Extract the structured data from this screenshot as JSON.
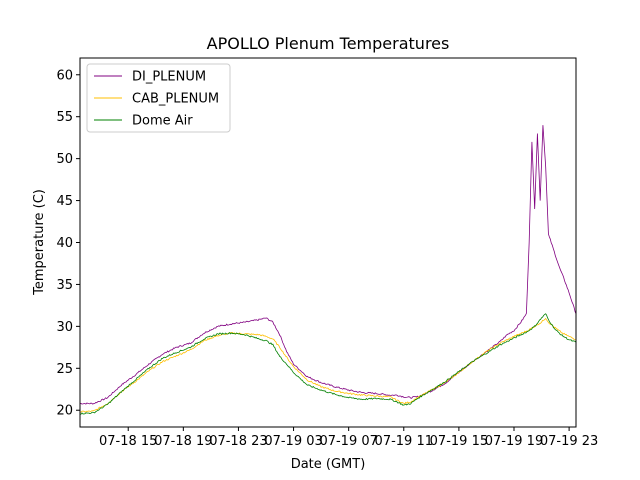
{
  "chart_data": {
    "type": "line",
    "title": "APOLLO Plenum Temperatures",
    "xlabel": "Date (GMT)",
    "ylabel": "Temperature (C)",
    "xlim": [
      11.5,
      47.5
    ],
    "ylim": [
      18,
      62
    ],
    "x_unit": "hours since 07-18 00:00 GMT",
    "yticks": [
      20,
      25,
      30,
      35,
      40,
      45,
      50,
      55,
      60
    ],
    "xticks": [
      {
        "x": 15,
        "label": "07-18 15"
      },
      {
        "x": 19,
        "label": "07-18 19"
      },
      {
        "x": 23,
        "label": "07-18 23"
      },
      {
        "x": 27,
        "label": "07-19 03"
      },
      {
        "x": 31,
        "label": "07-19 07"
      },
      {
        "x": 35,
        "label": "07-19 11"
      },
      {
        "x": 39,
        "label": "07-19 15"
      },
      {
        "x": 43,
        "label": "07-19 19"
      },
      {
        "x": 47,
        "label": "07-19 23"
      }
    ],
    "legend_position": "top-left",
    "series": [
      {
        "name": "DI_PLENUM",
        "color": "#800080",
        "points": [
          [
            11.5,
            20.8
          ],
          [
            12.5,
            20.8
          ],
          [
            13.5,
            21.5
          ],
          [
            14.5,
            23.0
          ],
          [
            15.5,
            24.2
          ],
          [
            16.5,
            25.5
          ],
          [
            17.5,
            26.7
          ],
          [
            18.5,
            27.5
          ],
          [
            19.5,
            28.0
          ],
          [
            20.5,
            29.2
          ],
          [
            21.5,
            30.0
          ],
          [
            22.5,
            30.3
          ],
          [
            23.5,
            30.5
          ],
          [
            24.5,
            30.8
          ],
          [
            25.0,
            31.0
          ],
          [
            25.5,
            30.5
          ],
          [
            26.0,
            29.0
          ],
          [
            26.5,
            27.0
          ],
          [
            27.0,
            25.5
          ],
          [
            28.0,
            24.0
          ],
          [
            29.0,
            23.3
          ],
          [
            30.0,
            22.8
          ],
          [
            31.0,
            22.4
          ],
          [
            32.0,
            22.1
          ],
          [
            33.0,
            22.0
          ],
          [
            34.0,
            21.8
          ],
          [
            34.5,
            21.8
          ],
          [
            35.0,
            21.6
          ],
          [
            35.5,
            21.5
          ],
          [
            36.0,
            21.6
          ],
          [
            37.0,
            22.3
          ],
          [
            38.0,
            23.2
          ],
          [
            39.0,
            24.5
          ],
          [
            40.0,
            25.8
          ],
          [
            41.0,
            27.0
          ],
          [
            42.0,
            28.2
          ],
          [
            42.5,
            29.0
          ],
          [
            43.0,
            29.5
          ],
          [
            43.5,
            30.5
          ],
          [
            43.9,
            31.5
          ],
          [
            44.1,
            40.0
          ],
          [
            44.3,
            52.0
          ],
          [
            44.5,
            44.0
          ],
          [
            44.7,
            53.0
          ],
          [
            44.9,
            45.0
          ],
          [
            45.1,
            54.0
          ],
          [
            45.3,
            49.0
          ],
          [
            45.5,
            41.0
          ],
          [
            45.7,
            40.0
          ],
          [
            46.0,
            38.5
          ],
          [
            46.3,
            37.0
          ],
          [
            46.6,
            35.8
          ],
          [
            47.0,
            34.0
          ],
          [
            47.5,
            31.5
          ]
        ]
      },
      {
        "name": "CAB_PLENUM",
        "color": "#ffbf00",
        "points": [
          [
            11.5,
            19.8
          ],
          [
            12.5,
            19.9
          ],
          [
            13.5,
            20.8
          ],
          [
            14.5,
            22.2
          ],
          [
            15.5,
            23.4
          ],
          [
            16.5,
            24.7
          ],
          [
            17.5,
            25.8
          ],
          [
            18.5,
            26.5
          ],
          [
            19.5,
            27.2
          ],
          [
            20.5,
            28.3
          ],
          [
            21.5,
            28.9
          ],
          [
            22.5,
            29.2
          ],
          [
            23.5,
            29.1
          ],
          [
            24.5,
            29.0
          ],
          [
            25.0,
            28.8
          ],
          [
            25.5,
            28.5
          ],
          [
            26.0,
            27.5
          ],
          [
            26.5,
            26.3
          ],
          [
            27.0,
            25.2
          ],
          [
            28.0,
            23.6
          ],
          [
            29.0,
            22.8
          ],
          [
            30.0,
            22.3
          ],
          [
            31.0,
            22.0
          ],
          [
            32.0,
            21.8
          ],
          [
            33.0,
            21.7
          ],
          [
            34.0,
            21.6
          ],
          [
            34.5,
            21.2
          ],
          [
            35.0,
            20.8
          ],
          [
            35.5,
            21.0
          ],
          [
            36.0,
            21.5
          ],
          [
            37.0,
            22.4
          ],
          [
            38.0,
            23.3
          ],
          [
            39.0,
            24.5
          ],
          [
            40.0,
            25.8
          ],
          [
            41.0,
            27.0
          ],
          [
            42.0,
            28.0
          ],
          [
            43.0,
            28.8
          ],
          [
            44.0,
            29.5
          ],
          [
            44.5,
            30.0
          ],
          [
            45.0,
            30.5
          ],
          [
            45.3,
            31.0
          ],
          [
            45.5,
            30.5
          ],
          [
            46.0,
            29.8
          ],
          [
            46.5,
            29.2
          ],
          [
            47.0,
            28.8
          ],
          [
            47.5,
            28.4
          ]
        ]
      },
      {
        "name": "Dome Air",
        "color": "#008000",
        "points": [
          [
            11.5,
            19.6
          ],
          [
            12.5,
            19.7
          ],
          [
            13.5,
            20.7
          ],
          [
            14.5,
            22.2
          ],
          [
            15.5,
            23.6
          ],
          [
            16.5,
            25.0
          ],
          [
            17.5,
            26.2
          ],
          [
            18.5,
            26.9
          ],
          [
            19.5,
            27.5
          ],
          [
            20.5,
            28.5
          ],
          [
            21.5,
            29.1
          ],
          [
            22.5,
            29.2
          ],
          [
            23.5,
            29.0
          ],
          [
            24.5,
            28.5
          ],
          [
            25.0,
            28.3
          ],
          [
            25.5,
            27.8
          ],
          [
            26.0,
            26.4
          ],
          [
            26.5,
            25.5
          ],
          [
            27.0,
            24.5
          ],
          [
            28.0,
            23.0
          ],
          [
            29.0,
            22.4
          ],
          [
            30.0,
            21.9
          ],
          [
            31.0,
            21.5
          ],
          [
            32.0,
            21.3
          ],
          [
            33.0,
            21.4
          ],
          [
            34.0,
            21.3
          ],
          [
            34.5,
            21.0
          ],
          [
            35.0,
            20.6
          ],
          [
            35.5,
            20.8
          ],
          [
            36.0,
            21.4
          ],
          [
            37.0,
            22.4
          ],
          [
            38.0,
            23.4
          ],
          [
            39.0,
            24.6
          ],
          [
            40.0,
            25.8
          ],
          [
            41.0,
            26.8
          ],
          [
            42.0,
            27.8
          ],
          [
            43.0,
            28.6
          ],
          [
            44.0,
            29.4
          ],
          [
            44.5,
            30.0
          ],
          [
            45.0,
            31.0
          ],
          [
            45.3,
            31.5
          ],
          [
            45.5,
            30.8
          ],
          [
            46.0,
            29.6
          ],
          [
            46.5,
            28.9
          ],
          [
            47.0,
            28.4
          ],
          [
            47.5,
            28.1
          ]
        ]
      }
    ]
  }
}
